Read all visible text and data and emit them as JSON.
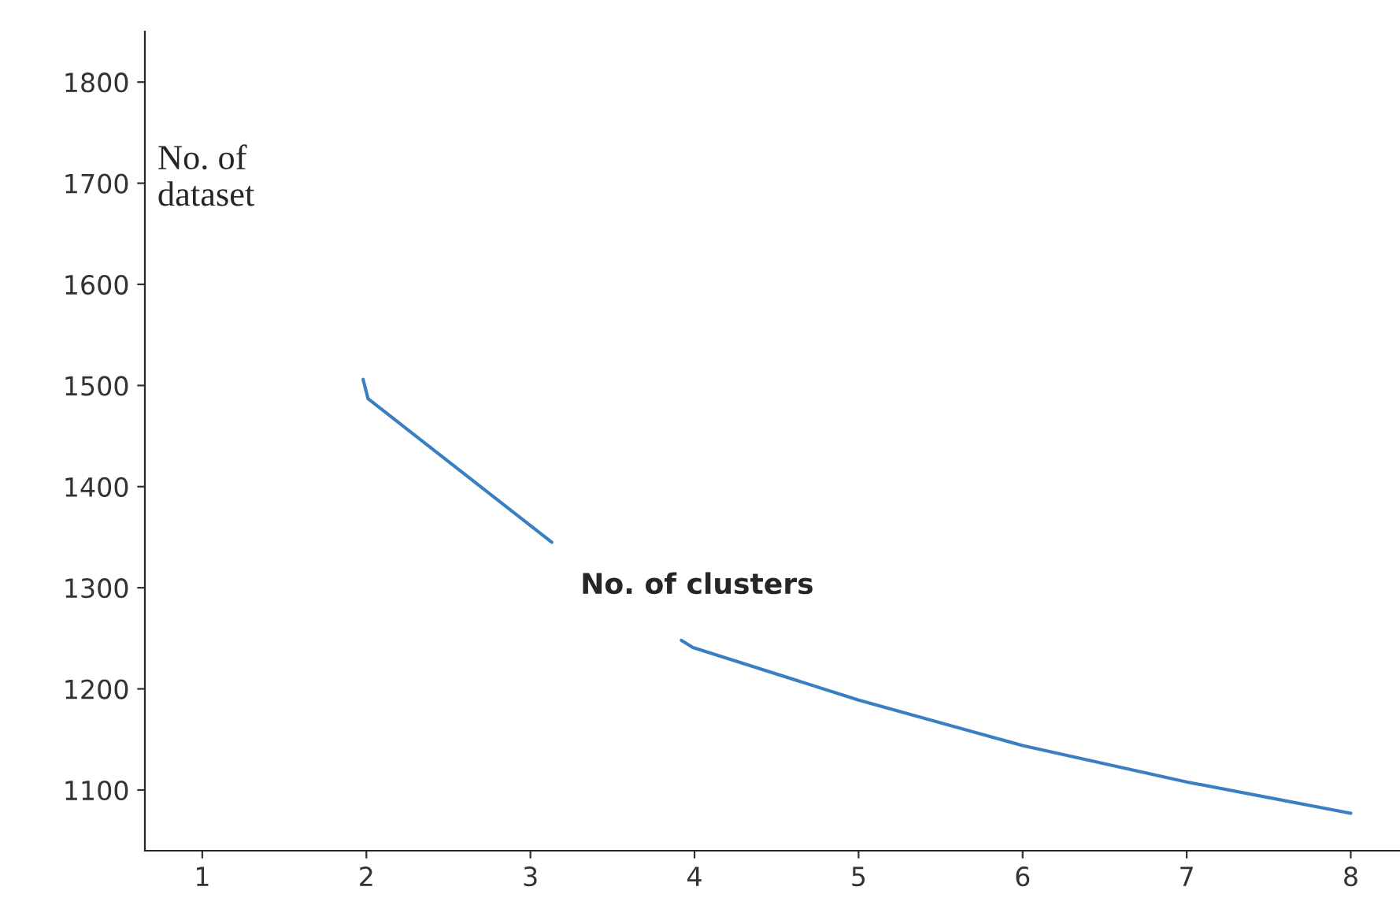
{
  "chart_data": {
    "type": "line",
    "xlabel": "No. of clusters",
    "ylabel": "No. of\ndataset",
    "x": [
      1.98,
      2.01,
      3.13,
      3.5,
      3.92,
      3.99,
      5.0,
      6.0,
      7.0,
      8.0
    ],
    "series": [
      {
        "color": "#3a7fc1",
        "values": [
          1506,
          1487,
          1345,
          null,
          1248,
          1241,
          1189,
          1144,
          1108,
          1077
        ]
      }
    ],
    "xlim": [
      0.65,
      8.3
    ],
    "ylim": [
      1040,
      1850
    ],
    "xticks": [
      1,
      2,
      3,
      4,
      5,
      6,
      7,
      8
    ],
    "yticks": [
      1100,
      1200,
      1300,
      1400,
      1500,
      1600,
      1700,
      1800
    ],
    "grid": false,
    "marker": "none",
    "line_style": "solid"
  }
}
